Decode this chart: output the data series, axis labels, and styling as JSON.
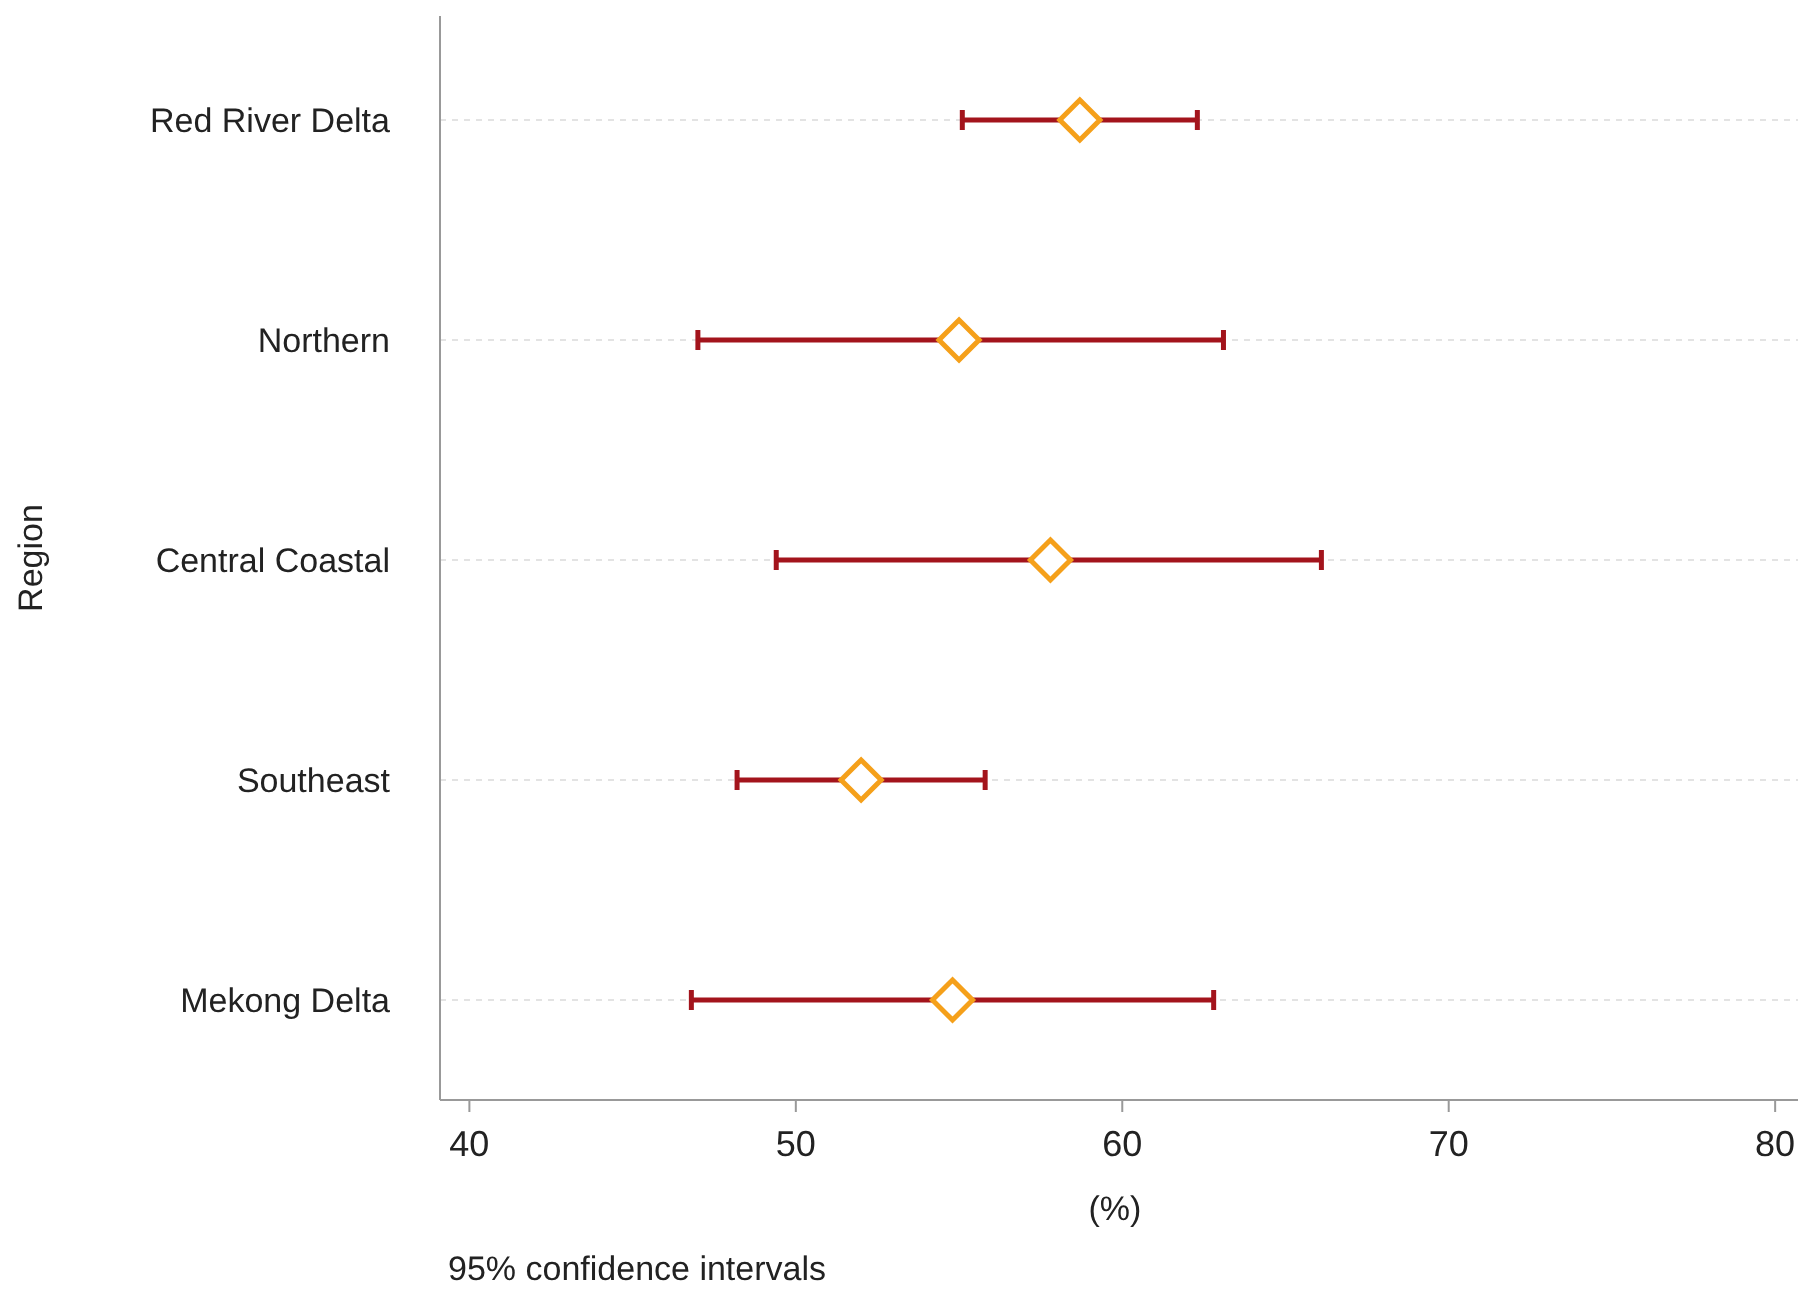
{
  "chart_data": {
    "type": "scatter",
    "orientation": "horizontal",
    "categories": [
      "Red River Delta",
      "Northern",
      "Central Coastal",
      "Southeast",
      "Mekong Delta"
    ],
    "series": [
      {
        "color": "#f5a01a",
        "values": [
          58.7,
          55.0,
          57.8,
          52.0,
          54.8
        ],
        "errors": [
          [
            55.1,
            62.3
          ],
          [
            47.0,
            63.1
          ],
          [
            49.4,
            66.1
          ],
          [
            48.2,
            55.8
          ],
          [
            46.8,
            62.8
          ]
        ]
      }
    ],
    "xlim": [
      39.1,
      80.7
    ],
    "xticks": [
      40,
      50,
      60,
      70,
      80
    ],
    "xlabel": "(%)",
    "ylabel": "Region",
    "grid": "y",
    "marker": "diamond",
    "annotations": [
      "95% confidence intervals"
    ]
  }
}
